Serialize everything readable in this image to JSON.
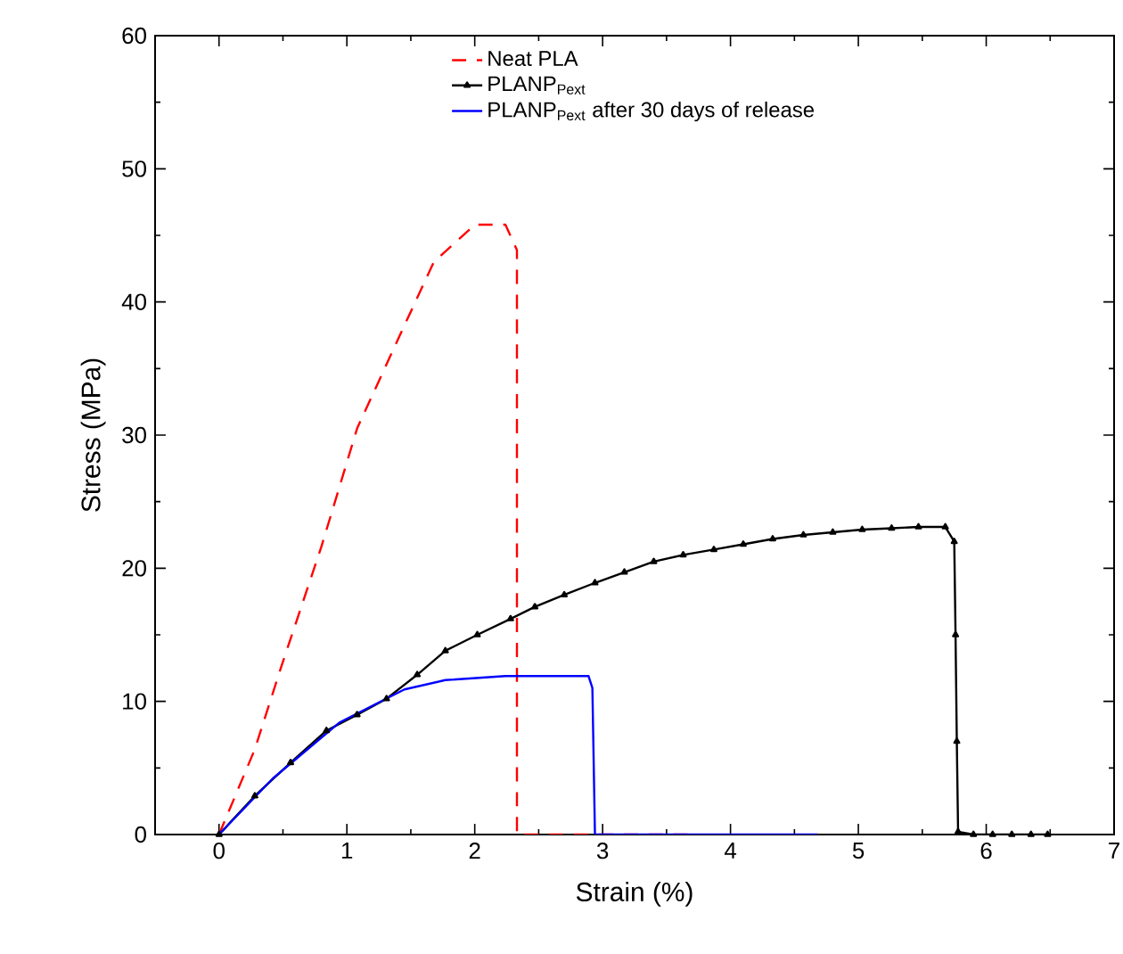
{
  "chart_data": {
    "type": "line",
    "xlabel": "Strain (%)",
    "ylabel": "Stress (MPa)",
    "xlim": [
      -0.5,
      7
    ],
    "ylim": [
      0,
      60
    ],
    "xticks": [
      0,
      1,
      2,
      3,
      4,
      5,
      6,
      7
    ],
    "yticks": [
      0,
      10,
      20,
      30,
      40,
      50,
      60
    ],
    "grid": false,
    "legend": "top",
    "series": [
      {
        "name": "Neat PLA",
        "color": "#ff0000",
        "line_style": "dashed",
        "marker": "none",
        "x": [
          0,
          0.28,
          0.49,
          0.8,
          1.08,
          1.4,
          1.68,
          2.0,
          2.24,
          2.33,
          2.33,
          3.74
        ],
        "values": [
          0,
          6.4,
          12.7,
          21.6,
          30.5,
          37.2,
          43.0,
          45.8,
          45.8,
          43.9,
          0,
          0
        ]
      },
      {
        "name": "PLANP$_{Pext}$",
        "color": "#000000",
        "line_style": "solid",
        "marker": "triangle",
        "x": [
          0,
          0.28,
          0.56,
          0.84,
          1.08,
          1.31,
          1.55,
          1.77,
          2.02,
          2.28,
          2.47,
          2.7,
          2.94,
          3.17,
          3.4,
          3.63,
          3.87,
          4.1,
          4.33,
          4.57,
          4.8,
          5.03,
          5.26,
          5.47,
          5.68,
          5.75,
          5.76,
          5.77,
          5.78,
          5.9,
          6.05,
          6.2,
          6.35,
          6.48
        ],
        "values": [
          0,
          2.9,
          5.4,
          7.8,
          9.0,
          10.2,
          12.0,
          13.8,
          15.0,
          16.2,
          17.1,
          18.0,
          18.9,
          19.7,
          20.5,
          21.0,
          21.4,
          21.8,
          22.2,
          22.5,
          22.7,
          22.9,
          23.0,
          23.1,
          23.1,
          22.0,
          15.0,
          7.0,
          0.2,
          0,
          0,
          0,
          0,
          0
        ]
      },
      {
        "name": "PLANP$_{Pext}$ after 30 days of release",
        "color": "#0000ff",
        "line_style": "solid",
        "marker": "none",
        "x": [
          0,
          0.42,
          0.94,
          1.45,
          1.77,
          2.24,
          2.89,
          2.92,
          2.94,
          4.68
        ],
        "values": [
          0,
          4.2,
          8.4,
          10.9,
          11.6,
          11.9,
          11.9,
          11.0,
          0,
          0
        ]
      }
    ]
  }
}
